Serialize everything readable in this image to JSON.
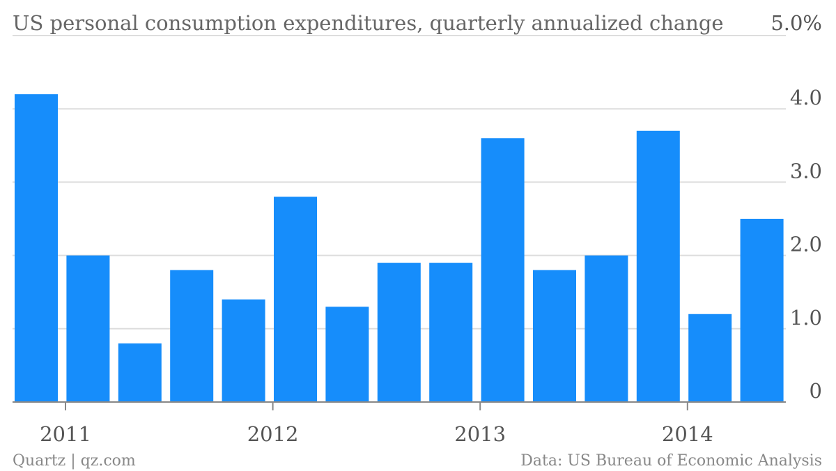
{
  "chart_data": {
    "type": "bar",
    "title": "US personal consumption expenditures, quarterly annualized change",
    "categories": [
      "2011 Q1",
      "2011 Q2",
      "2011 Q3",
      "2011 Q4",
      "2012 Q1",
      "2012 Q2",
      "2012 Q3",
      "2012 Q4",
      "2013 Q1",
      "2013 Q2",
      "2013 Q3",
      "2013 Q4",
      "2014 Q1",
      "2014 Q2",
      "2014 Q3"
    ],
    "values": [
      4.2,
      2.0,
      0.8,
      1.8,
      1.4,
      2.8,
      1.3,
      1.9,
      1.9,
      3.6,
      1.8,
      2.0,
      3.7,
      1.2,
      2.5
    ],
    "x_tick_labels": [
      {
        "label": "2011",
        "category_index": 0
      },
      {
        "label": "2012",
        "category_index": 4
      },
      {
        "label": "2013",
        "category_index": 8
      },
      {
        "label": "2014",
        "category_index": 12
      }
    ],
    "y_ticks": [
      {
        "value": 0,
        "label": "0"
      },
      {
        "value": 1,
        "label": "1.0"
      },
      {
        "value": 2,
        "label": "2.0"
      },
      {
        "value": 3,
        "label": "3.0"
      },
      {
        "value": 4,
        "label": "4.0"
      },
      {
        "value": 5,
        "label": "5.0%"
      }
    ],
    "ylim": [
      0,
      5
    ],
    "grid": true,
    "y_axis_side": "right",
    "bar_color": "#168dfb"
  },
  "footer": {
    "source_left": "Quartz | qz.com",
    "source_right": "Data: US Bureau of Economic Analysis"
  }
}
